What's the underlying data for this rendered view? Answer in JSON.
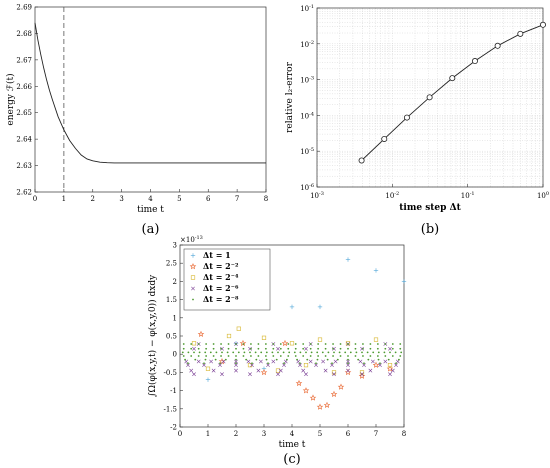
{
  "chart_data": [
    {
      "panel": "(a)",
      "type": "line",
      "xlabel": "time t",
      "ylabel": "energy ℱ(t)",
      "xlim": [
        0,
        8
      ],
      "ylim": [
        2.62,
        2.69
      ],
      "xticks": [
        "0",
        "1",
        "2",
        "3",
        "4",
        "5",
        "6",
        "7",
        "8"
      ],
      "yticks": [
        "2.62",
        "2.63",
        "2.64",
        "2.65",
        "2.66",
        "2.67",
        "2.68",
        "2.69"
      ],
      "vline_x": 1,
      "grid": false,
      "series": [
        {
          "x": [
            0,
            0.1,
            0.2,
            0.3,
            0.4,
            0.5,
            0.6,
            0.8,
            1.0,
            1.2,
            1.4,
            1.6,
            1.8,
            2.0,
            2.25,
            2.5,
            2.75,
            3.0,
            3.5,
            4.0,
            4.5,
            5.0,
            6.0,
            7.0,
            8.0
          ],
          "y": [
            2.684,
            2.6775,
            2.672,
            2.667,
            2.6625,
            2.6585,
            2.655,
            2.6485,
            2.6435,
            2.6395,
            2.6365,
            2.634,
            2.6325,
            2.6318,
            2.6313,
            2.6311,
            2.631,
            2.631,
            2.631,
            2.631,
            2.631,
            2.631,
            2.631,
            2.631,
            2.631
          ]
        }
      ]
    },
    {
      "panel": "(b)",
      "type": "line",
      "xlabel": "time step Δt",
      "ylabel": "relative l₂-error",
      "xscale": "log",
      "yscale": "log",
      "xlim": [
        0.001,
        1
      ],
      "ylim": [
        1e-06,
        0.1
      ],
      "xticks": [
        {
          "base": "10",
          "exp": "-3"
        },
        {
          "base": "10",
          "exp": "-2"
        },
        {
          "base": "10",
          "exp": "-1"
        },
        {
          "base": "10",
          "exp": "0"
        }
      ],
      "yticks": [
        {
          "base": "10",
          "exp": "-6"
        },
        {
          "base": "10",
          "exp": "-5"
        },
        {
          "base": "10",
          "exp": "-4"
        },
        {
          "base": "10",
          "exp": "-3"
        },
        {
          "base": "10",
          "exp": "-2"
        },
        {
          "base": "10",
          "exp": "-1"
        }
      ],
      "grid": true,
      "series": [
        {
          "marker": "circle",
          "x": [
            0.00390625,
            0.0078125,
            0.015625,
            0.03125,
            0.0625,
            0.125,
            0.25,
            0.5,
            1.0
          ],
          "y": [
            5.5e-06,
            2.2e-05,
            8.7e-05,
            0.00032,
            0.0011,
            0.0033,
            0.0088,
            0.019,
            0.034
          ]
        }
      ]
    },
    {
      "panel": "(c)",
      "type": "scatter",
      "xlabel": "time t",
      "ylabel": "∫Ω(φ(x,y,t) − φ(x,y,0)) dxdy",
      "exponent_label": {
        "base": "×10",
        "exp": "-13"
      },
      "xlim": [
        0,
        8
      ],
      "ylim": [
        -2,
        3
      ],
      "xticks": [
        "0",
        "1",
        "2",
        "3",
        "4",
        "5",
        "6",
        "7",
        "8"
      ],
      "yticks": [
        "-2",
        "-1.5",
        "-1",
        "-0.5",
        "0",
        "0.5",
        "1",
        "1.5",
        "2",
        "2.5",
        "3"
      ],
      "grid": false,
      "legend_position": "top-left",
      "series": [
        {
          "name": "Δt = 1",
          "marker": "+",
          "color": "#4fa6d8",
          "points": [
            [
              1,
              -0.7
            ],
            [
              2,
              0.3
            ],
            [
              3,
              -0.4
            ],
            [
              4,
              1.3
            ],
            [
              5,
              1.3
            ],
            [
              6,
              2.6
            ],
            [
              7,
              2.3
            ],
            [
              8,
              2.0
            ]
          ]
        },
        {
          "name": "Δt = 2⁻²",
          "marker": "star",
          "color": "#e8622a",
          "points": [
            [
              0.75,
              0.55
            ],
            [
              1.5,
              -0.2
            ],
            [
              2.25,
              0.3
            ],
            [
              3,
              -0.5
            ],
            [
              3.75,
              0.3
            ],
            [
              4.25,
              -0.8
            ],
            [
              4.5,
              -1.0
            ],
            [
              4.75,
              -1.2
            ],
            [
              5,
              -1.45
            ],
            [
              5.25,
              -1.4
            ],
            [
              5.5,
              -1.1
            ],
            [
              5.75,
              -0.9
            ],
            [
              6,
              -0.5
            ],
            [
              6.5,
              -0.6
            ],
            [
              7,
              -0.3
            ],
            [
              7.5,
              -0.4
            ]
          ]
        },
        {
          "name": "Δt = 2⁻⁴",
          "marker": "square",
          "color": "#d6b52a",
          "points": [
            [
              0.5,
              0.3
            ],
            [
              1,
              -0.4
            ],
            [
              1.75,
              0.5
            ],
            [
              2.1,
              0.7
            ],
            [
              2.5,
              -0.3
            ],
            [
              3,
              0.45
            ],
            [
              3.5,
              -0.45
            ],
            [
              4,
              0.3
            ],
            [
              4.5,
              -0.3
            ],
            [
              5,
              0.4
            ],
            [
              5.5,
              -0.5
            ],
            [
              6,
              0.3
            ],
            [
              6.5,
              -0.5
            ],
            [
              7,
              0.4
            ],
            [
              7.5,
              -0.3
            ]
          ]
        },
        {
          "name": "Δt = 2⁻⁶",
          "marker": "x",
          "color": "#7a3f95",
          "band": [
            [
              -0.55,
              8
            ],
            [
              -0.45,
              10
            ],
            [
              -0.3,
              14
            ],
            [
              -0.2,
              18
            ],
            [
              0.15,
              8
            ],
            [
              0.28,
              6
            ]
          ]
        },
        {
          "name": "Δt = 2⁻⁸",
          "marker": "dot",
          "color": "#4e9a32",
          "band": [
            [
              0.28,
              30
            ],
            [
              0.15,
              30
            ],
            [
              0.05,
              40
            ],
            [
              -0.05,
              30
            ],
            [
              -0.15,
              22
            ],
            [
              -0.25,
              14
            ]
          ]
        }
      ]
    }
  ]
}
